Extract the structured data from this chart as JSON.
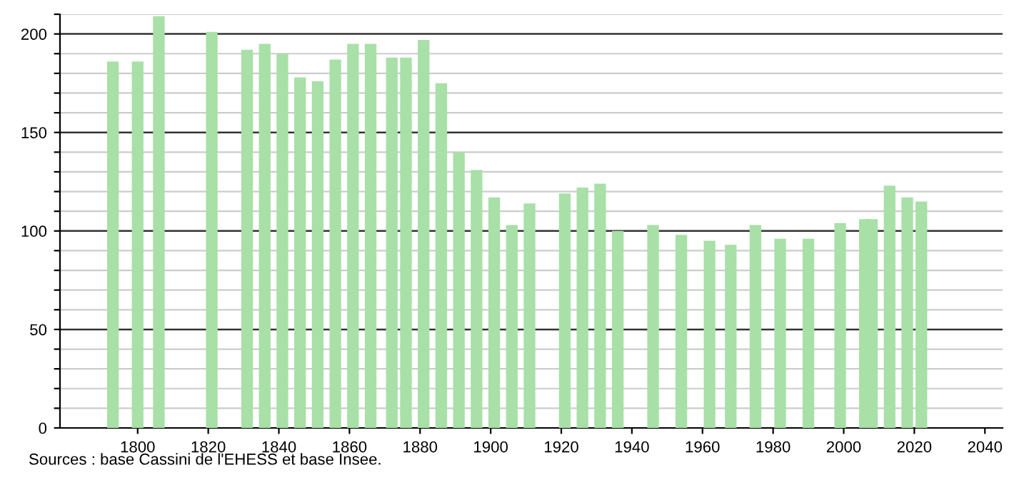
{
  "chart_data": {
    "type": "bar",
    "color": "#a8e0a8",
    "x": [
      1793,
      1800,
      1806,
      1821,
      1831,
      1836,
      1841,
      1846,
      1851,
      1856,
      1861,
      1866,
      1872,
      1876,
      1881,
      1886,
      1891,
      1896,
      1901,
      1906,
      1911,
      1921,
      1926,
      1931,
      1936,
      1946,
      1954,
      1962,
      1968,
      1975,
      1982,
      1990,
      1999,
      2006,
      2008,
      2013,
      2018,
      2022
    ],
    "values": [
      186,
      186,
      209,
      201,
      192,
      195,
      190,
      178,
      176,
      187,
      195,
      195,
      188,
      188,
      197,
      175,
      140,
      131,
      117,
      103,
      114,
      119,
      122,
      124,
      100,
      103,
      98,
      95,
      93,
      103,
      96,
      96,
      104,
      106,
      106,
      123,
      117,
      115
    ],
    "xlim": [
      1778,
      2045
    ],
    "xticks": [
      1800,
      1820,
      1840,
      1860,
      1880,
      1900,
      1920,
      1940,
      1960,
      1980,
      2000,
      2020,
      2040
    ],
    "ylim": [
      0,
      210
    ],
    "yticks": [
      0,
      {
        "value": 10,
        "label": null
      },
      {
        "value": 20,
        "label": null
      },
      {
        "value": 30,
        "label": null
      },
      {
        "value": 40,
        "label": null
      },
      50,
      {
        "value": 60,
        "label": null
      },
      {
        "value": 70,
        "label": null
      },
      {
        "value": 80,
        "label": null
      },
      {
        "value": 90,
        "label": null
      },
      100,
      {
        "value": 110,
        "label": null
      },
      {
        "value": 120,
        "label": null
      },
      {
        "value": 130,
        "label": null
      },
      {
        "value": 140,
        "label": null
      },
      150,
      {
        "value": 160,
        "label": null
      },
      {
        "value": 170,
        "label": null
      },
      {
        "value": 180,
        "label": null
      },
      {
        "value": 190,
        "label": null
      },
      200,
      {
        "value": 210,
        "label": null
      }
    ],
    "grid": "y",
    "annotations": [
      "Sources : base Cassini de l'EHESS et base Insee."
    ]
  }
}
